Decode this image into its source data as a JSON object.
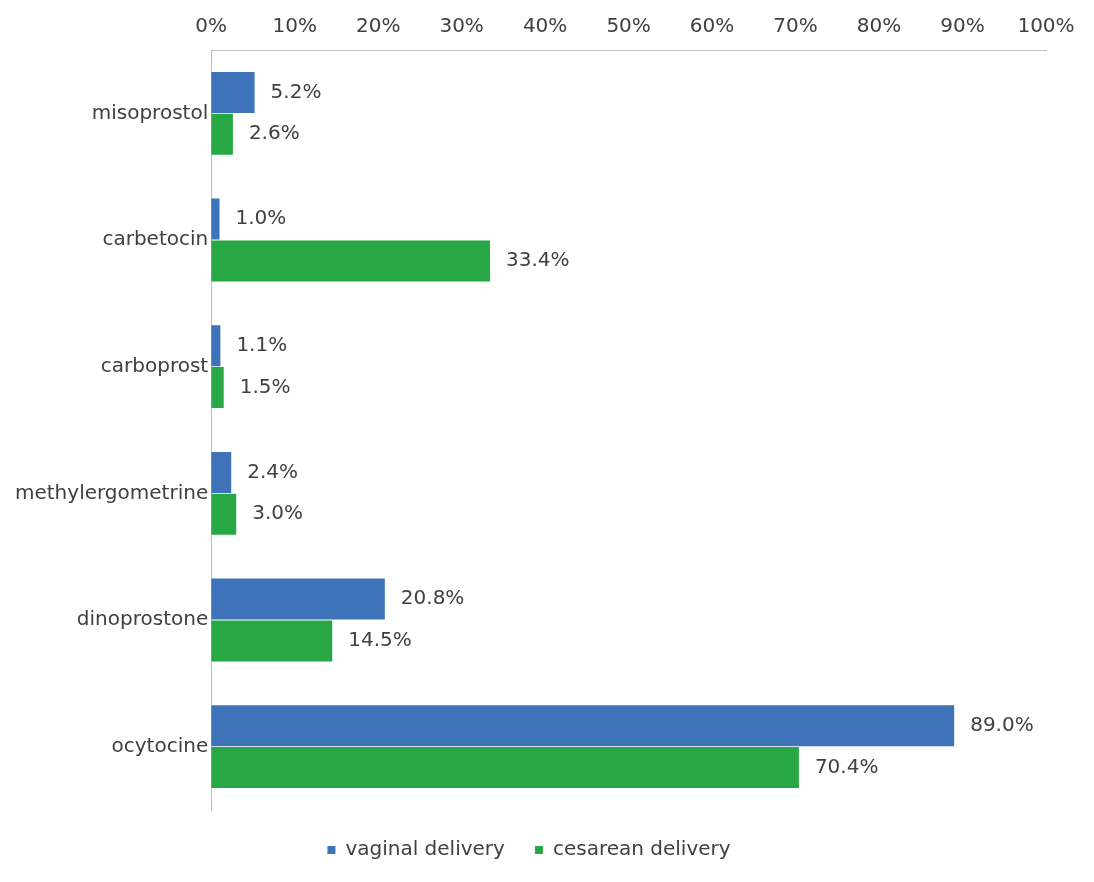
{
  "chart_data": {
    "type": "bar",
    "orientation": "horizontal",
    "categories": [
      "misoprostol",
      "carbetocin",
      "carboprost",
      "methylergometrine",
      "dinoprostone",
      "ocytocine"
    ],
    "series": [
      {
        "name": "vaginal delivery",
        "color": "#3e73ba",
        "values": [
          5.2,
          1.0,
          1.1,
          2.4,
          20.8,
          89.0
        ],
        "value_labels": [
          "5.2%",
          "1.0%",
          "1.1%",
          "2.4%",
          "20.8%",
          "89.0%"
        ]
      },
      {
        "name": "cesarean delivery",
        "color": "#27a844",
        "values": [
          2.6,
          33.4,
          1.5,
          3.0,
          14.5,
          70.4
        ],
        "value_labels": [
          "2.6%",
          "33.4%",
          "1.5%",
          "3.0%",
          "14.5%",
          "70.4%"
        ]
      }
    ],
    "xlim": [
      0,
      100
    ],
    "xticks": [
      {
        "value": 0,
        "label": "0%"
      },
      {
        "value": 10,
        "label": "10%"
      },
      {
        "value": 20,
        "label": "20%"
      },
      {
        "value": 30,
        "label": "30%"
      },
      {
        "value": 40,
        "label": "40%"
      },
      {
        "value": 50,
        "label": "50%"
      },
      {
        "value": 60,
        "label": "60%"
      },
      {
        "value": 70,
        "label": "70%"
      },
      {
        "value": 80,
        "label": "80%"
      },
      {
        "value": 90,
        "label": "90%"
      },
      {
        "value": 100,
        "label": "100%"
      }
    ],
    "grid": false,
    "legend": "bottom"
  }
}
